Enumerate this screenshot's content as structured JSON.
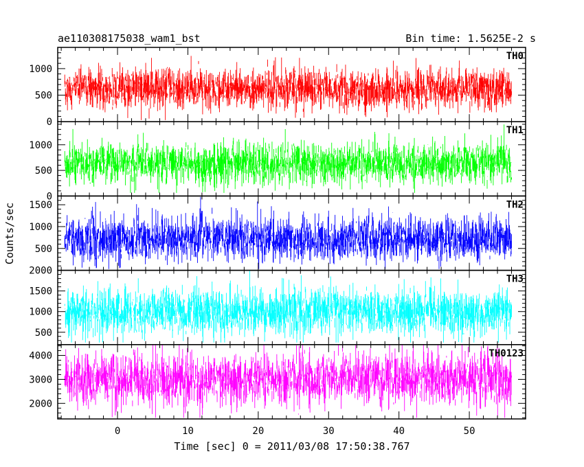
{
  "header": {
    "title": "ae110308175038_wam1_bst",
    "bin_time": "Bin time: 1.5625E-2 s"
  },
  "chart_data": {
    "type": "line",
    "title": "ae110308175038_wam1_bst",
    "subtitle": "Bin time: 1.5625E-2 s",
    "xlabel": "Time [sec] 0 = 2011/03/08 17:50:38.767",
    "ylabel": "Counts/sec",
    "xlim": [
      -8.5,
      58
    ],
    "xticks": [
      0,
      10,
      20,
      30,
      40,
      50
    ],
    "x_data_range": [
      -7.5,
      56
    ],
    "bin_time_s": 0.015625,
    "panels": [
      {
        "name": "TH0",
        "color": "#ff0000",
        "ylim": [
          0,
          1400
        ],
        "yticks": [
          0,
          500,
          1000
        ],
        "mean": 620,
        "typical_low": 250,
        "typical_high": 1000,
        "min": 30,
        "max": 1380
      },
      {
        "name": "TH1",
        "color": "#00ff00",
        "ylim": [
          0,
          1450
        ],
        "yticks": [
          0,
          500,
          1000
        ],
        "mean": 640,
        "typical_low": 250,
        "typical_high": 1050,
        "min": 60,
        "max": 1420
      },
      {
        "name": "TH2",
        "color": "#0000ff",
        "ylim": [
          0,
          1700
        ],
        "yticks": [
          500,
          1000,
          1500
        ],
        "mean": 720,
        "typical_low": 250,
        "typical_high": 1250,
        "min": 30,
        "max": 1680
      },
      {
        "name": "TH3",
        "color": "#00ffff",
        "ylim": [
          200,
          2000
        ],
        "yticks": [
          500,
          1000,
          1500,
          2000
        ],
        "mean": 1000,
        "typical_low": 450,
        "typical_high": 1600,
        "min": 250,
        "max": 2000
      },
      {
        "name": "TH0123",
        "color": "#ff00ff",
        "ylim": [
          1350,
          4450
        ],
        "yticks": [
          2000,
          3000,
          4000
        ],
        "mean": 3000,
        "typical_low": 1900,
        "typical_high": 4100,
        "min": 1400,
        "max": 4450
      }
    ]
  }
}
